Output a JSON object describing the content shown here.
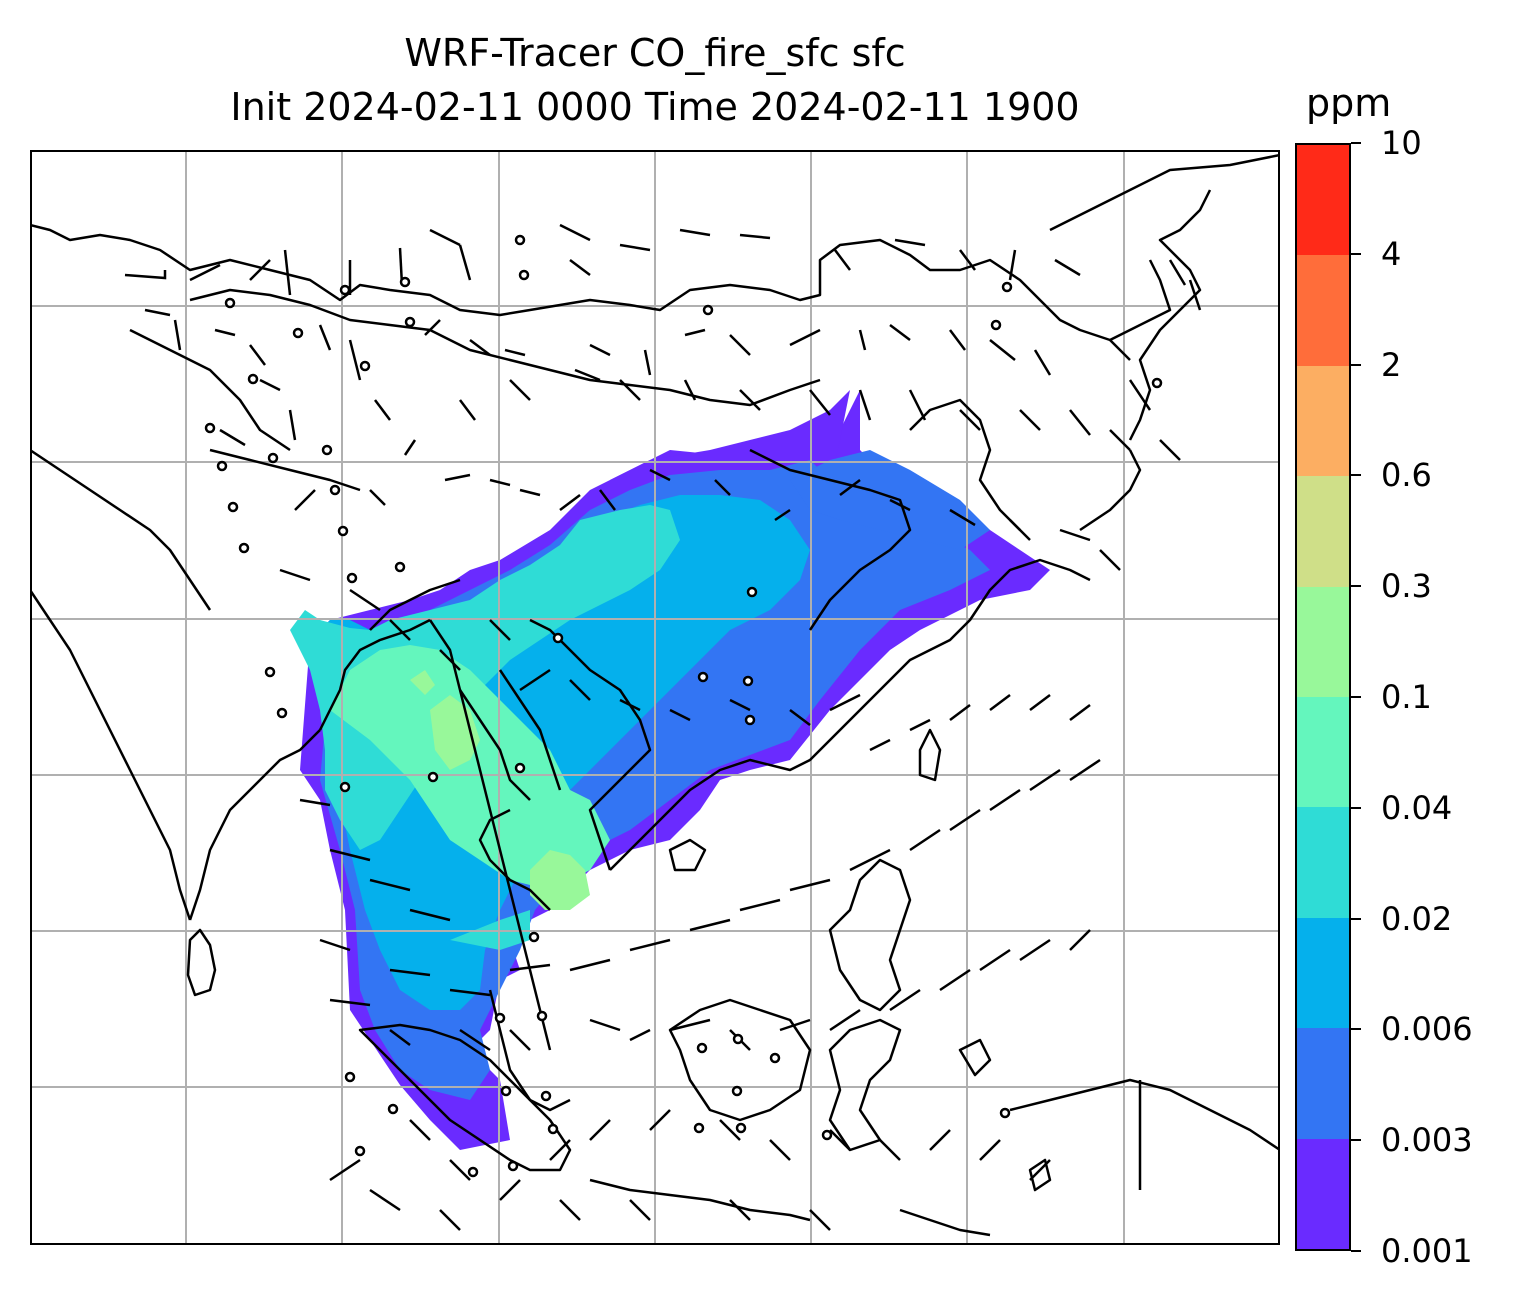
{
  "title_line1": "WRF-Tracer CO_fire_sfc sfc",
  "title_line2": "Init 2024-02-11 0000 Time 2024-02-11 1900",
  "colorbar": {
    "unit": "ppm",
    "levels": [
      "0.001",
      "0.003",
      "0.006",
      "0.02",
      "0.04",
      "0.1",
      "0.3",
      "0.6",
      "2",
      "4",
      "10"
    ],
    "colors": [
      "#6a2bff",
      "#3375f3",
      "#05b0ec",
      "#2fdcd6",
      "#64f6bd",
      "#98f89a",
      "#cfdf88",
      "#fcae62",
      "#ff6d3a",
      "#ff2a18"
    ]
  },
  "map": {
    "gridlines": true,
    "layers": [
      "coastlines",
      "country-borders",
      "co-fire-concentration",
      "wind-barbs",
      "calm-wind-circles"
    ]
  }
}
